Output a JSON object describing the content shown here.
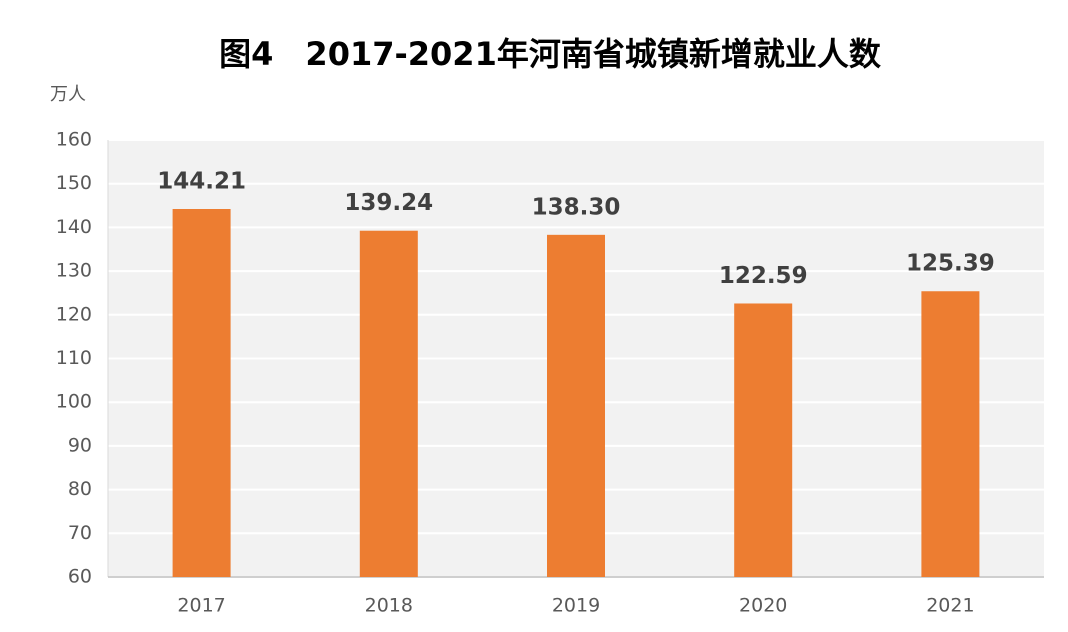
{
  "chart_data": {
    "type": "bar",
    "title": "图4　2017-2021年河南省城镇新增就业人数",
    "y_label": "万人",
    "categories": [
      "2017",
      "2018",
      "2019",
      "2020",
      "2021"
    ],
    "values": [
      144.21,
      139.24,
      138.3,
      122.59,
      125.39
    ],
    "value_labels": [
      "144.21",
      "139.24",
      "138.30",
      "122.59",
      "125.39"
    ],
    "color": "#ed7d31",
    "ylim": [
      60,
      160
    ],
    "yticks": [
      60,
      70,
      80,
      90,
      100,
      110,
      120,
      130,
      140,
      150,
      160
    ],
    "grid": true
  }
}
